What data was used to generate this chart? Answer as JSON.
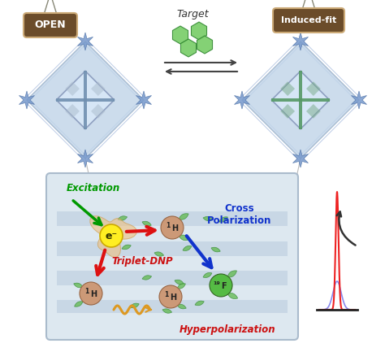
{
  "open_label": "OPEN",
  "induced_label": "Induced-fit",
  "target_label": "Target",
  "excitation_label": "Excitation",
  "cross_polar_label": "Cross\nPolarization",
  "triplet_dnp_label": "Triplet-DNP",
  "hyperpolar_label": "Hyperpolarization",
  "electron_label": "e⁻",
  "bg_color": "#ffffff",
  "sign_color": "#6b4c2a",
  "sign_text_color": "#ffffff",
  "excitation_color": "#009900",
  "cross_polar_color": "#1133cc",
  "triplet_dnp_color": "#cc1111",
  "hyperpolar_color": "#cc1111",
  "arrow_red_color": "#dd1111",
  "arrow_blue_color": "#1133cc",
  "electron_color": "#ffee22",
  "h1_color": "#cc9977",
  "f19_color": "#55bb44",
  "lower_box_bg": "#dde8f0",
  "band_color": "#b0c4d8",
  "peak_red_color": "#ee2222",
  "peak_blue_color": "#8888ee",
  "star_color": "#7799cc",
  "open_diamond_color": "#c0d4e8",
  "induced_diamond_color": "#c0d4e8",
  "open_inner_color": "#7090b0",
  "induced_inner_color": "#559966"
}
